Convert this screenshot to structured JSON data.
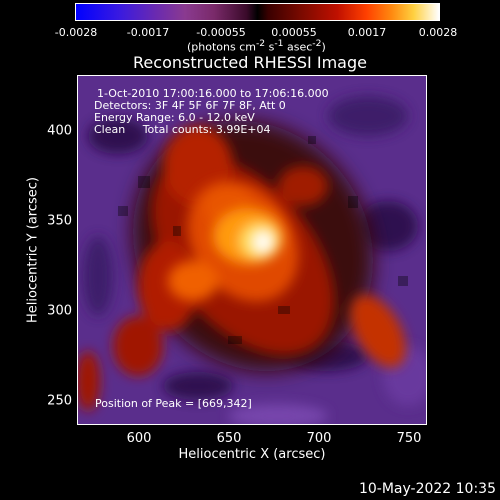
{
  "colorbar": {
    "ticks": [
      "-0.0028",
      "-0.0017",
      "-0.00055",
      "0.00055",
      "0.0017",
      "0.0028"
    ],
    "units_html": "(photons cm<sup>-2</sup> s<sup>-1</sup> asec<sup>-2</sup>)"
  },
  "title": "Reconstructed RHESSI Image",
  "annotations": {
    "time": "1-Oct-2010 17:00:16.000 to 17:06:16.000",
    "detectors": "Detectors: 3F 4F 5F 6F 7F 8F, Att 0",
    "energy": "Energy Range: 6.0 - 12.0 keV",
    "clean": "Clean     Total counts: 3.99E+04",
    "peak": "Position of Peak = [669,342]"
  },
  "axes": {
    "xlabel": "Heliocentric X (arcsec)",
    "ylabel": "Heliocentric Y (arcsec)",
    "xticks": [
      "600",
      "650",
      "700",
      "750"
    ],
    "yticks": [
      "400",
      "350",
      "300",
      "250"
    ]
  },
  "footer": "10-May-2022 10:35"
}
